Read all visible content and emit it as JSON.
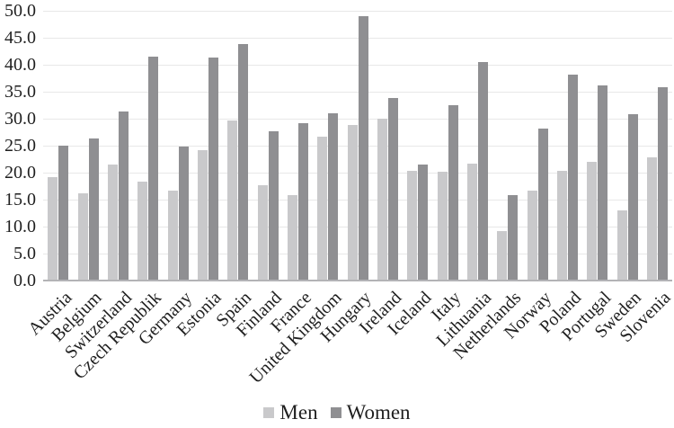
{
  "chart_data": {
    "type": "bar",
    "title": "",
    "categories": [
      "Austria",
      "Belgium",
      "Switzerland",
      "Czech Republik",
      "Germany",
      "Estonia",
      "Spain",
      "Finland",
      "France",
      "United Kingdom",
      "Hungary",
      "Ireland",
      "Iceland",
      "Italy",
      "Lithuania",
      "Netherlands",
      "Norway",
      "Poland",
      "Portugal",
      "Sweden",
      "Slovenia"
    ],
    "series": [
      {
        "name": "Men",
        "color": "#c9c9cb",
        "values": [
          19.1,
          16.2,
          21.5,
          18.4,
          16.7,
          24.1,
          29.7,
          17.6,
          15.9,
          26.6,
          28.8,
          30.0,
          20.4,
          20.2,
          21.7,
          9.2,
          16.7,
          20.3,
          22.0,
          13.0,
          22.9
        ]
      },
      {
        "name": "Women",
        "color": "#8f8f92",
        "values": [
          25.0,
          26.3,
          31.3,
          41.5,
          24.9,
          41.3,
          43.8,
          27.7,
          29.1,
          31.0,
          49.0,
          33.8,
          21.5,
          32.5,
          40.5,
          15.9,
          28.2,
          38.1,
          36.1,
          30.8,
          35.8
        ]
      }
    ],
    "xlabel": "",
    "ylabel": "",
    "ylim": [
      0,
      50
    ],
    "ytick_step": 5,
    "ytick_labels": [
      "0.0",
      "5.0",
      "10.0",
      "15.0",
      "20.0",
      "25.0",
      "30.0",
      "35.0",
      "40.0",
      "45.0",
      "50.0"
    ],
    "grid": true,
    "legend_position": "bottom",
    "colors": {
      "gridline": "#e8e8e8",
      "axis_line": "#b3b3b6",
      "text": "#1f1f1f",
      "background": "#ffffff"
    }
  }
}
